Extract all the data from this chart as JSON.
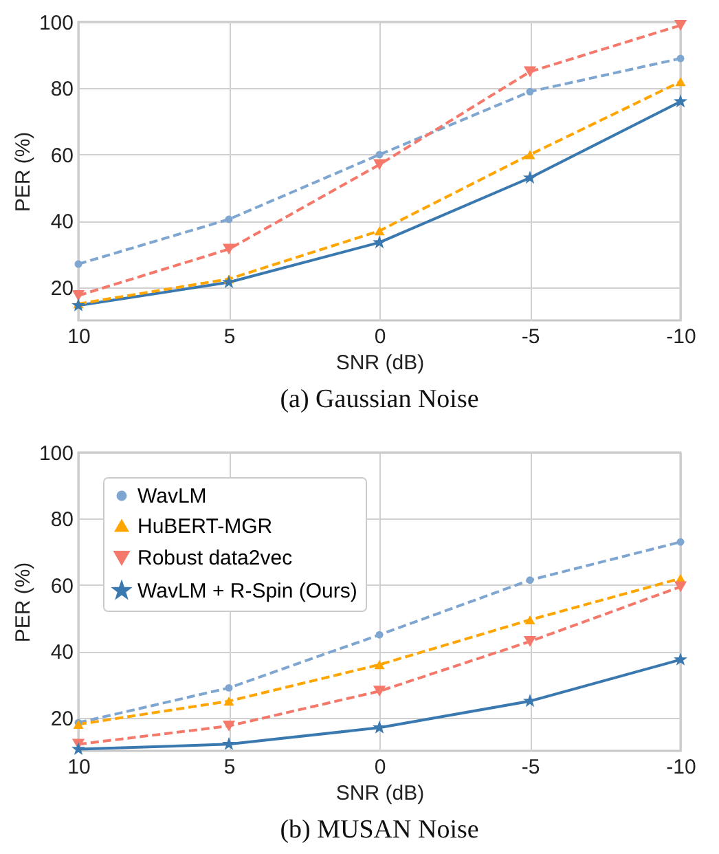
{
  "chart_data": [
    {
      "type": "line",
      "title": "(a) Gaussian Noise",
      "xlabel": "SNR (dB)",
      "ylabel": "PER (%)",
      "x": [
        10,
        5,
        0,
        -5,
        -10
      ],
      "xlim": [
        10,
        -10
      ],
      "xticks": [
        10,
        5,
        0,
        -5,
        -10
      ],
      "ylim": [
        10,
        100
      ],
      "yticks": [
        20,
        40,
        60,
        80,
        100
      ],
      "grid": true,
      "legend": false,
      "series": [
        {
          "color": "#7ea6d0",
          "marker": "circle",
          "line_style": "dashed",
          "values": [
            27,
            40.5,
            60,
            79,
            89
          ]
        },
        {
          "color": "#ffa500",
          "marker": "triangle",
          "line_style": "dashed",
          "values": [
            15,
            22.5,
            37,
            60,
            82
          ]
        },
        {
          "color": "#f4796b",
          "marker": "triangle-down",
          "line_style": "dashed",
          "values": [
            17.5,
            31.5,
            57,
            85,
            99
          ]
        },
        {
          "color": "#3a78b0",
          "marker": "star",
          "line_style": "solid",
          "values": [
            14.5,
            21.5,
            33.5,
            53,
            76
          ]
        }
      ]
    },
    {
      "type": "line",
      "title": "(b) MUSAN Noise",
      "xlabel": "SNR (dB)",
      "ylabel": "PER (%)",
      "x": [
        10,
        5,
        0,
        -5,
        -10
      ],
      "xlim": [
        10,
        -10
      ],
      "xticks": [
        10,
        5,
        0,
        -5,
        -10
      ],
      "ylim": [
        10,
        100
      ],
      "yticks": [
        20,
        40,
        60,
        80,
        100
      ],
      "grid": true,
      "legend": "top left",
      "series": [
        {
          "name": "WavLM",
          "color": "#7ea6d0",
          "marker": "circle",
          "line_style": "dashed",
          "values": [
            18.5,
            29,
            45,
            61.5,
            73
          ]
        },
        {
          "name": "HuBERT-MGR",
          "color": "#ffa500",
          "marker": "triangle",
          "line_style": "dashed",
          "values": [
            18,
            25,
            36,
            49.5,
            62
          ]
        },
        {
          "name": "Robust data2vec",
          "color": "#f4796b",
          "marker": "triangle-down",
          "line_style": "dashed",
          "values": [
            12,
            17.5,
            28,
            43,
            59.5
          ]
        },
        {
          "name": "WavLM + R-Spin (Ours)",
          "color": "#3a78b0",
          "marker": "star",
          "line_style": "solid",
          "values": [
            10.5,
            12,
            17,
            25,
            37.5
          ]
        }
      ]
    }
  ]
}
